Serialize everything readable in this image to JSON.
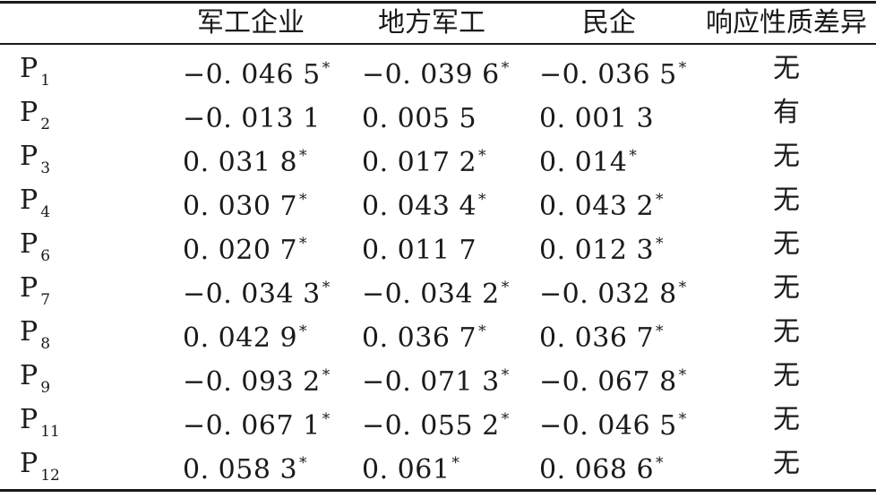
{
  "table": {
    "headers": [
      "",
      "军工企业",
      "地方军工",
      "民企",
      "响应性质差异"
    ],
    "rows": [
      {
        "name": "P",
        "sub": "1",
        "c1": "−0. 046 5",
        "s1": "*",
        "c2": "−0. 039 6",
        "s2": "*",
        "c3": "−0. 036 5",
        "s3": "*",
        "resp": "无"
      },
      {
        "name": "P",
        "sub": "2",
        "c1": "−0. 013 1",
        "s1": "",
        "c2": "0. 005 5",
        "s2": "",
        "c3": "0. 001 3",
        "s3": "",
        "resp": "有"
      },
      {
        "name": "P",
        "sub": "3",
        "c1": "0. 031 8",
        "s1": "*",
        "c2": "0. 017 2",
        "s2": "*",
        "c3": "0. 014",
        "s3": "*",
        "resp": "无"
      },
      {
        "name": "P",
        "sub": "4",
        "c1": "0. 030 7",
        "s1": "*",
        "c2": "0. 043 4",
        "s2": "*",
        "c3": "0. 043 2",
        "s3": "*",
        "resp": "无"
      },
      {
        "name": "P",
        "sub": "6",
        "c1": "0. 020 7",
        "s1": "*",
        "c2": "0. 011 7",
        "s2": "",
        "c3": "0. 012 3",
        "s3": "*",
        "resp": "无"
      },
      {
        "name": "P",
        "sub": "7",
        "c1": "−0. 034 3",
        "s1": "*",
        "c2": "−0. 034 2",
        "s2": "*",
        "c3": "−0. 032 8",
        "s3": "*",
        "resp": "无"
      },
      {
        "name": "P",
        "sub": "8",
        "c1": "0. 042 9",
        "s1": "*",
        "c2": "0. 036 7",
        "s2": "*",
        "c3": "0. 036 7",
        "s3": "*",
        "resp": "无"
      },
      {
        "name": "P",
        "sub": "9",
        "c1": "−0. 093 2",
        "s1": "*",
        "c2": "−0. 071 3",
        "s2": "*",
        "c3": "−0. 067 8",
        "s3": "*",
        "resp": "无"
      },
      {
        "name": "P",
        "sub": "11",
        "c1": "−0. 067 1",
        "s1": "*",
        "c2": "−0. 055 2",
        "s2": "*",
        "c3": "−0. 046 5",
        "s3": "*",
        "resp": "无"
      },
      {
        "name": "P",
        "sub": "12",
        "c1": "0. 058 3",
        "s1": "*",
        "c2": "0. 061",
        "s2": "*",
        "c3": "0. 068 6",
        "s3": "*",
        "resp": "无"
      }
    ]
  }
}
